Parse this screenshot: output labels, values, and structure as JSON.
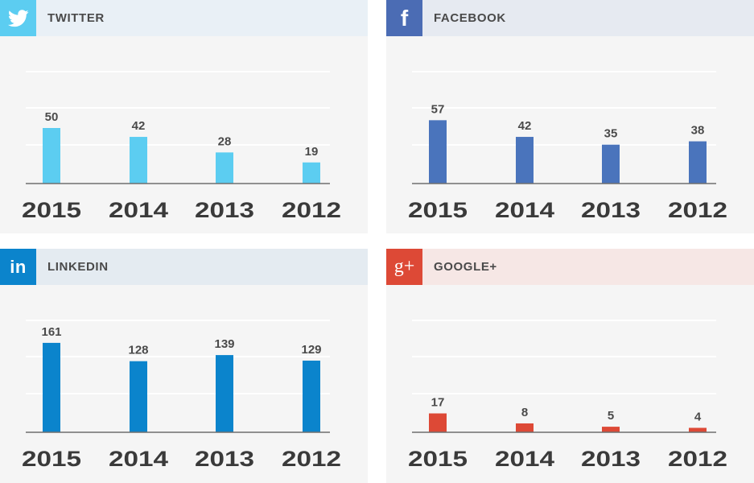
{
  "panels": [
    {
      "id": "twitter",
      "title": "TWITTER",
      "icon": "twitter-bird-icon"
    },
    {
      "id": "facebook",
      "title": "FACEBOOK",
      "icon": "facebook-f-icon"
    },
    {
      "id": "linkedin",
      "title": "LINKEDIN",
      "icon": "linkedin-in-icon"
    },
    {
      "id": "google",
      "title": "GOOGLE+",
      "icon": "google-plus-icon"
    }
  ],
  "colors": {
    "twitter": "#5ccdf1",
    "twitter_header": "#e9f0f6",
    "twitter_icon_bg": "#5ccdf1",
    "facebook": "#4a74bc",
    "facebook_header": "#e6eaf1",
    "facebook_icon_bg": "#4b6cb4",
    "linkedin": "#0b84cc",
    "linkedin_header": "#e4ebf1",
    "linkedin_icon_bg": "#0b84cc",
    "google": "#dd4936",
    "google_header": "#f6e7e5",
    "google_icon_bg": "#dd4936",
    "gridline": "#ffffff",
    "baseline": "#6f6f6f",
    "value_text": "#4a4a4a",
    "year_text": "#3a3a3a"
  },
  "icon_labels": {
    "facebook": "f",
    "linkedin": "in",
    "google": "g+"
  },
  "chart_data": [
    {
      "type": "bar",
      "panel": "twitter",
      "categories": [
        "2015",
        "2014",
        "2013",
        "2012"
      ],
      "values": [
        50,
        42,
        28,
        19
      ],
      "ylim": [
        0,
        100
      ],
      "grid": true
    },
    {
      "type": "bar",
      "panel": "facebook",
      "categories": [
        "2015",
        "2014",
        "2013",
        "2012"
      ],
      "values": [
        57,
        42,
        35,
        38
      ],
      "ylim": [
        0,
        100
      ],
      "grid": true
    },
    {
      "type": "bar",
      "panel": "linkedin",
      "categories": [
        "2015",
        "2014",
        "2013",
        "2012"
      ],
      "values": [
        161,
        128,
        139,
        129
      ],
      "ylim": [
        0,
        200
      ],
      "grid": true
    },
    {
      "type": "bar",
      "panel": "google",
      "categories": [
        "2015",
        "2014",
        "2013",
        "2012"
      ],
      "values": [
        17,
        8,
        5,
        4
      ],
      "ylim": [
        0,
        100
      ],
      "grid": true
    }
  ]
}
